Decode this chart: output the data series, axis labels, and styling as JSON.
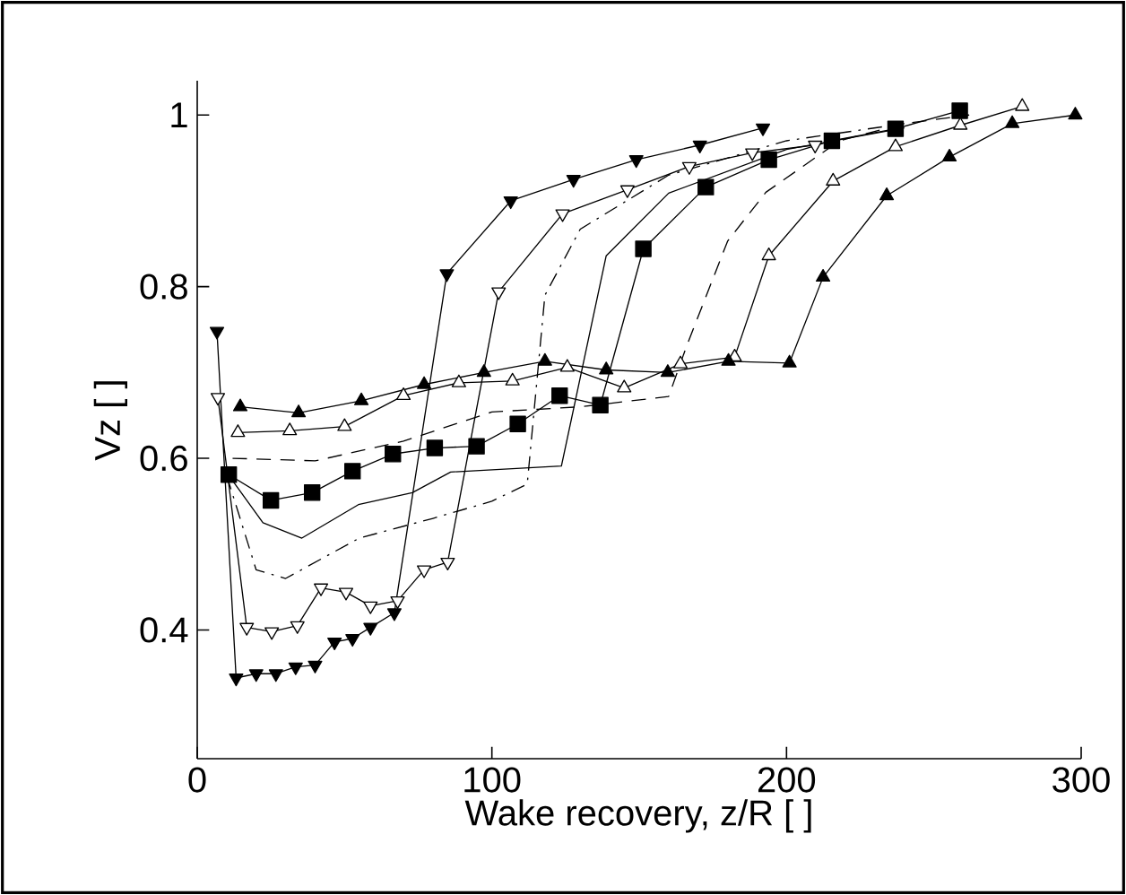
{
  "chart_data": {
    "type": "line",
    "xlabel": "Wake recovery, z/R [ ]",
    "ylabel": "Vz [ ]",
    "xlim": [
      0,
      300
    ],
    "xticks": [
      0,
      100,
      200,
      300
    ],
    "ylim": [
      0.25,
      1.04
    ],
    "yticks": [
      0.4,
      0.6,
      0.8,
      1
    ],
    "line_style": "solid",
    "series": [
      {
        "color": "#000000",
        "marker": "triangle-down",
        "x": [
          6.7,
          13.2,
          20,
          26.7,
          33.4,
          40,
          46.6,
          52.7,
          58.8,
          66.9,
          84.7,
          106.4,
          127.7,
          149,
          170.6,
          192
        ],
        "values": [
          0.748,
          0.344,
          0.349,
          0.349,
          0.357,
          0.359,
          0.386,
          0.39,
          0.403,
          0.42,
          0.815,
          0.9,
          0.925,
          0.948,
          0.965,
          0.985
        ]
      },
      {
        "color": "#000000",
        "marker": "triangle-down-open",
        "x": [
          7,
          16.8,
          25.3,
          34,
          42,
          50.5,
          58.8,
          68,
          77,
          85,
          102.3,
          124,
          146,
          167,
          188.4,
          209.7
        ],
        "values": [
          0.671,
          0.403,
          0.398,
          0.405,
          0.449,
          0.444,
          0.428,
          0.434,
          0.47,
          0.479,
          0.794,
          0.885,
          0.913,
          0.94,
          0.956,
          0.965
        ]
      },
      {
        "color": "#000000",
        "marker": "none",
        "line_style": "dashdot",
        "x": [
          10,
          20,
          30,
          55,
          80,
          100,
          112,
          118,
          130,
          160,
          200,
          240
        ],
        "values": [
          0.58,
          0.47,
          0.46,
          0.507,
          0.53,
          0.55,
          0.57,
          0.79,
          0.867,
          0.93,
          0.97,
          0.99
        ]
      },
      {
        "color": "#000000",
        "marker": "none",
        "x": [
          10.7,
          22.3,
          35.5,
          54.7,
          73,
          86,
          123.6,
          138.8,
          160,
          200,
          240
        ],
        "values": [
          0.58,
          0.525,
          0.507,
          0.546,
          0.56,
          0.584,
          0.591,
          0.836,
          0.909,
          0.96,
          0.985
        ]
      },
      {
        "color": "#000000",
        "marker": "square",
        "x": [
          10.7,
          25,
          39,
          52.7,
          66.4,
          80.6,
          94.8,
          108.8,
          123,
          136.8,
          151.4,
          172.6,
          194,
          215.4,
          237,
          258.8
        ],
        "values": [
          0.581,
          0.551,
          0.56,
          0.585,
          0.605,
          0.612,
          0.614,
          0.64,
          0.673,
          0.662,
          0.844,
          0.916,
          0.948,
          0.97,
          0.984,
          1.005
        ]
      },
      {
        "color": "#000000",
        "marker": "none",
        "line_style": "dashed",
        "x": [
          12,
          40,
          70,
          100,
          130,
          160,
          166,
          180,
          193,
          218,
          240,
          262
        ],
        "values": [
          0.6,
          0.597,
          0.62,
          0.654,
          0.66,
          0.672,
          0.73,
          0.853,
          0.91,
          0.97,
          0.99,
          1.0
        ]
      },
      {
        "color": "#000000",
        "marker": "triangle-open",
        "x": [
          13.8,
          31.4,
          50,
          70,
          88.8,
          107,
          125.6,
          144.9,
          164,
          182.4,
          194,
          215.8,
          237,
          259,
          280
        ],
        "values": [
          0.63,
          0.632,
          0.637,
          0.673,
          0.688,
          0.69,
          0.706,
          0.682,
          0.71,
          0.718,
          0.836,
          0.923,
          0.963,
          0.988,
          1.01
        ]
      },
      {
        "color": "#000000",
        "marker": "triangle",
        "x": [
          14.6,
          34.4,
          55.7,
          77,
          97.3,
          118,
          138.8,
          159.7,
          180.3,
          201,
          212.4,
          234,
          255.3,
          276.6,
          298
        ],
        "values": [
          0.66,
          0.653,
          0.667,
          0.686,
          0.7,
          0.713,
          0.703,
          0.7,
          0.713,
          0.711,
          0.811,
          0.906,
          0.951,
          0.99,
          1.0
        ]
      }
    ]
  }
}
